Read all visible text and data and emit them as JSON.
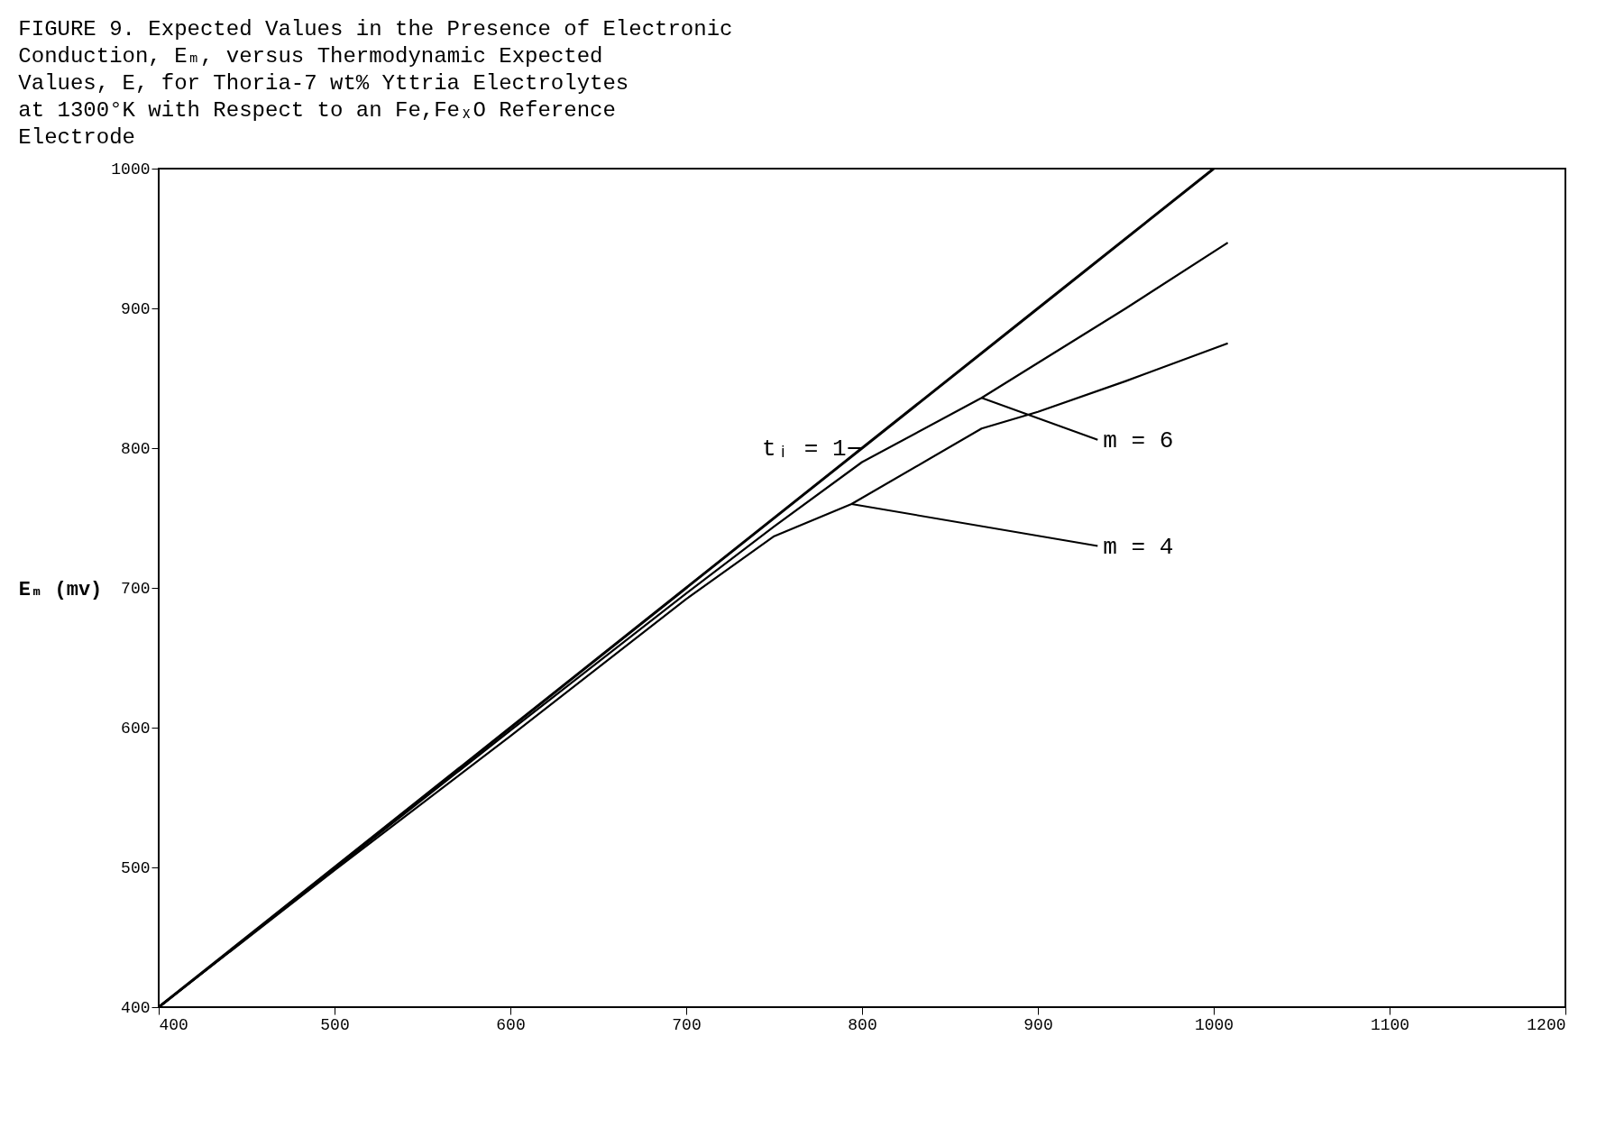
{
  "chart_data": {
    "type": "line",
    "title": [
      "FIGURE 9. Expected Values in the Presence of Electronic",
      "Conduction, Eₘ, versus Thermodynamic Expected",
      "Values, E, for Thoria-7 wt% Yttria Electrolytes",
      "at 1300°K with Respect to an Fe,FeₓO Reference",
      "Electrode"
    ],
    "ylabel": "Eₘ (mv)",
    "series": [
      {
        "color": "#000000",
        "x": [
          400,
          500,
          600,
          700,
          800,
          900,
          1000
        ],
        "values": [
          400,
          500,
          600,
          700,
          800,
          900,
          1000
        ]
      },
      {
        "color": "#000000",
        "x": [
          400,
          500,
          600,
          700,
          750,
          800,
          868,
          900,
          950,
          1008
        ],
        "values": [
          400,
          499,
          598,
          696,
          744,
          790,
          836,
          861,
          900,
          947
        ]
      },
      {
        "color": "#000000",
        "x": [
          400,
          500,
          600,
          700,
          750,
          794,
          868,
          900,
          950,
          1008
        ],
        "values": [
          400,
          498,
          594,
          692,
          737,
          760,
          814,
          826,
          848,
          875
        ]
      }
    ],
    "annotations": [
      {
        "text": "tᵢ = 1",
        "x": 800,
        "y": 800
      },
      {
        "text": "m = 6",
        "x": 868,
        "y": 836
      },
      {
        "text": "m = 4",
        "x": 794,
        "y": 760
      }
    ],
    "xlim": [
      400,
      1200
    ],
    "ylim": [
      400,
      1000
    ],
    "xticks": [
      400,
      500,
      600,
      700,
      800,
      900,
      1000,
      1100,
      1200
    ],
    "yticks": [
      400,
      500,
      600,
      700,
      800,
      900,
      1000
    ],
    "grid": false,
    "marker": "none",
    "line_style": "solid"
  }
}
